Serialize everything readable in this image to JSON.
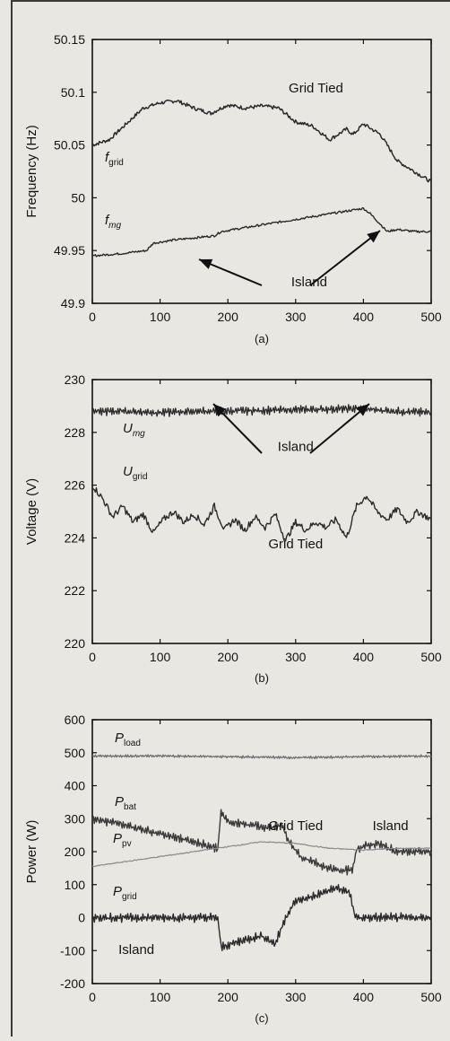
{
  "chart_data": [
    {
      "type": "line",
      "panel_label": "(a)",
      "ylabel": "Frequency (Hz)",
      "xlabel": "",
      "xlim": [
        0,
        500
      ],
      "ylim": [
        49.9,
        50.15
      ],
      "xticks": [
        "0",
        "100",
        "200",
        "300",
        "400",
        "500"
      ],
      "yticks": [
        "49.9",
        "49.95",
        "50",
        "50.05",
        "50.1",
        "50.15"
      ],
      "annotations": [
        {
          "text": "Grid Tied",
          "x": 330,
          "y": 50.1
        },
        {
          "text": "Island",
          "x": 320,
          "y": 49.916
        }
      ],
      "series": [
        {
          "name": "f",
          "name_sub": "grid",
          "points": [
            [
              0,
              50.05
            ],
            [
              25,
              50.055
            ],
            [
              50,
              50.07
            ],
            [
              75,
              50.085
            ],
            [
              100,
              50.09
            ],
            [
              125,
              50.092
            ],
            [
              150,
              50.085
            ],
            [
              175,
              50.08
            ],
            [
              190,
              50.085
            ],
            [
              200,
              50.088
            ],
            [
              225,
              50.085
            ],
            [
              250,
              50.087
            ],
            [
              275,
              50.085
            ],
            [
              300,
              50.072
            ],
            [
              325,
              50.068
            ],
            [
              350,
              50.055
            ],
            [
              375,
              50.065
            ],
            [
              385,
              50.06
            ],
            [
              400,
              50.07
            ],
            [
              425,
              50.06
            ],
            [
              450,
              50.035
            ],
            [
              475,
              50.025
            ],
            [
              500,
              50.015
            ]
          ]
        },
        {
          "name": "f",
          "name_sub": "mg",
          "points": [
            [
              0,
              49.945
            ],
            [
              40,
              49.947
            ],
            [
              80,
              49.95
            ],
            [
              90,
              49.957
            ],
            [
              120,
              49.96
            ],
            [
              150,
              49.962
            ],
            [
              180,
              49.964
            ],
            [
              190,
              49.968
            ],
            [
              400,
              49.99
            ],
            [
              410,
              49.985
            ],
            [
              425,
              49.975
            ],
            [
              435,
              49.968
            ],
            [
              450,
              49.97
            ],
            [
              475,
              49.968
            ],
            [
              500,
              49.968
            ]
          ]
        }
      ]
    },
    {
      "type": "line",
      "panel_label": "(b)",
      "ylabel": "Voltage (V)",
      "xlabel": "",
      "xlim": [
        0,
        500
      ],
      "ylim": [
        220,
        230
      ],
      "xticks": [
        "0",
        "100",
        "200",
        "300",
        "400",
        "500"
      ],
      "yticks": [
        "220",
        "222",
        "224",
        "226",
        "228",
        "230"
      ],
      "annotations": [
        {
          "text": "Island",
          "x": 300,
          "y": 227.3
        },
        {
          "text": "Grid Tied",
          "x": 300,
          "y": 223.6
        }
      ],
      "series": [
        {
          "name": "U",
          "name_sub": "mg",
          "points": [
            [
              0,
              228.8
            ],
            [
              50,
              228.8
            ],
            [
              100,
              228.75
            ],
            [
              150,
              228.8
            ],
            [
              185,
              228.8
            ],
            [
              390,
              228.9
            ],
            [
              420,
              228.85
            ],
            [
              450,
              228.8
            ],
            [
              500,
              228.75
            ]
          ]
        },
        {
          "name": "U",
          "name_sub": "grid",
          "points": [
            [
              0,
              226.0
            ],
            [
              15,
              225.5
            ],
            [
              30,
              224.8
            ],
            [
              45,
              225.2
            ],
            [
              60,
              224.6
            ],
            [
              75,
              224.9
            ],
            [
              90,
              224.2
            ],
            [
              105,
              224.7
            ],
            [
              120,
              225.0
            ],
            [
              135,
              224.6
            ],
            [
              150,
              224.9
            ],
            [
              165,
              224.5
            ],
            [
              180,
              225.2
            ],
            [
              195,
              224.3
            ],
            [
              210,
              224.7
            ],
            [
              225,
              224.3
            ],
            [
              240,
              224.8
            ],
            [
              255,
              224.4
            ],
            [
              270,
              224.9
            ],
            [
              285,
              223.9
            ],
            [
              300,
              224.6
            ],
            [
              315,
              224.3
            ],
            [
              330,
              224.6
            ],
            [
              345,
              224.4
            ],
            [
              360,
              224.7
            ],
            [
              375,
              224.0
            ],
            [
              390,
              225.2
            ],
            [
              405,
              225.6
            ],
            [
              420,
              225.0
            ],
            [
              435,
              224.7
            ],
            [
              450,
              225.1
            ],
            [
              465,
              224.6
            ],
            [
              480,
              225.0
            ],
            [
              500,
              224.7
            ]
          ]
        }
      ]
    },
    {
      "type": "line",
      "panel_label": "(c)",
      "ylabel": "Power (W)",
      "xlabel": "",
      "xlim": [
        0,
        500
      ],
      "ylim": [
        -200,
        600
      ],
      "xticks": [
        "0",
        "100",
        "200",
        "300",
        "400",
        "500"
      ],
      "yticks": [
        "-200",
        "-100",
        "0",
        "100",
        "200",
        "300",
        "400",
        "500",
        "600"
      ],
      "annotations": [
        {
          "text": "Grid Tied",
          "x": 300,
          "y": 265
        },
        {
          "text": "Island",
          "x": 440,
          "y": 265
        },
        {
          "text": "Island",
          "x": 65,
          "y": -110
        }
      ],
      "series": [
        {
          "name": "P",
          "name_sub": "load",
          "points": [
            [
              0,
              490
            ],
            [
              100,
              490
            ],
            [
              200,
              488
            ],
            [
              300,
              485
            ],
            [
              400,
              488
            ],
            [
              500,
              490
            ]
          ]
        },
        {
          "name": "P",
          "name_sub": "bat",
          "points": [
            [
              0,
              300
            ],
            [
              50,
              280
            ],
            [
              100,
              255
            ],
            [
              150,
              230
            ],
            [
              185,
              210
            ],
            [
              190,
              320
            ],
            [
              200,
              290
            ],
            [
              220,
              285
            ],
            [
              240,
              280
            ],
            [
              260,
              270
            ],
            [
              280,
              280
            ],
            [
              290,
              230
            ],
            [
              310,
              180
            ],
            [
              330,
              165
            ],
            [
              350,
              150
            ],
            [
              370,
              140
            ],
            [
              385,
              150
            ],
            [
              390,
              210
            ],
            [
              420,
              225
            ],
            [
              450,
              200
            ],
            [
              500,
              200
            ]
          ]
        },
        {
          "name": "P",
          "name_sub": "pv",
          "points": [
            [
              0,
              155
            ],
            [
              50,
              170
            ],
            [
              100,
              185
            ],
            [
              150,
              200
            ],
            [
              200,
              215
            ],
            [
              250,
              230
            ],
            [
              300,
              225
            ],
            [
              350,
              210
            ],
            [
              400,
              205
            ],
            [
              450,
              210
            ],
            [
              500,
              210
            ]
          ]
        },
        {
          "name": "P",
          "name_sub": "grid",
          "points": [
            [
              0,
              0
            ],
            [
              100,
              0
            ],
            [
              185,
              0
            ],
            [
              190,
              -90
            ],
            [
              220,
              -70
            ],
            [
              250,
              -55
            ],
            [
              270,
              -80
            ],
            [
              285,
              0
            ],
            [
              300,
              50
            ],
            [
              320,
              60
            ],
            [
              340,
              75
            ],
            [
              360,
              90
            ],
            [
              380,
              75
            ],
            [
              388,
              0
            ],
            [
              420,
              0
            ],
            [
              460,
              0
            ],
            [
              500,
              0
            ]
          ]
        }
      ]
    }
  ]
}
